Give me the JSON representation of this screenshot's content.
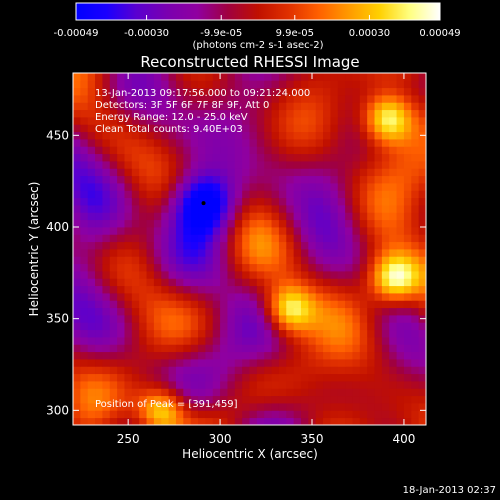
{
  "chart_data": {
    "type": "heatmap",
    "title": "Reconstructed RHESSI Image",
    "xlabel": "Heliocentric X (arcsec)",
    "ylabel": "Heliocentric Y (arcsec)",
    "xlim": [
      220,
      412
    ],
    "ylim": [
      292,
      484
    ],
    "x_ticks": [
      250,
      300,
      350,
      400
    ],
    "y_ticks": [
      300,
      350,
      400,
      450
    ],
    "grid": false,
    "annotations": [
      "13-Jan-2013 09:17:56.000 to 09:21:24.000",
      "Detectors: 3F 5F 6F 7F 8F 9F, Att 0",
      "Energy Range: 12.0 - 25.0 keV",
      "Clean     Total counts: 9.40E+03"
    ],
    "peak_label": "Position of Peak = [391,459]",
    "footer_date": "18-Jan-2013 02:37",
    "colorbar": {
      "min": -0.00049,
      "max": 0.00049,
      "tick_labels": [
        "-0.00049",
        "-0.00030",
        "-9.9e-05",
        "9.9e-05",
        "0.00030",
        "0.00049"
      ],
      "tick_values": [
        -0.00049,
        -0.0003,
        -9.9e-05,
        9.9e-05,
        0.0003,
        0.00049
      ],
      "units_label": "(photons cm-2 s-1 asec-2)",
      "colormap": [
        "#0000ff",
        "#1a00ff",
        "#5a00d0",
        "#7a00b0",
        "#9000a0",
        "#a00040",
        "#c01000",
        "#e03000",
        "#ff6000",
        "#ff9a00",
        "#ffd000",
        "#ffff80",
        "#ffffff"
      ]
    },
    "features": [
      {
        "kind": "negative_minimum",
        "x": 291,
        "y": 413
      },
      {
        "kind": "bright_source",
        "x": 268,
        "y": 300
      },
      {
        "kind": "bright_source",
        "x": 337,
        "y": 355
      },
      {
        "kind": "bright_source",
        "x": 395,
        "y": 372
      },
      {
        "kind": "bright_source",
        "x": 391,
        "y": 459
      }
    ],
    "colors": {
      "background": "#000000",
      "text": "#ffffff"
    }
  }
}
